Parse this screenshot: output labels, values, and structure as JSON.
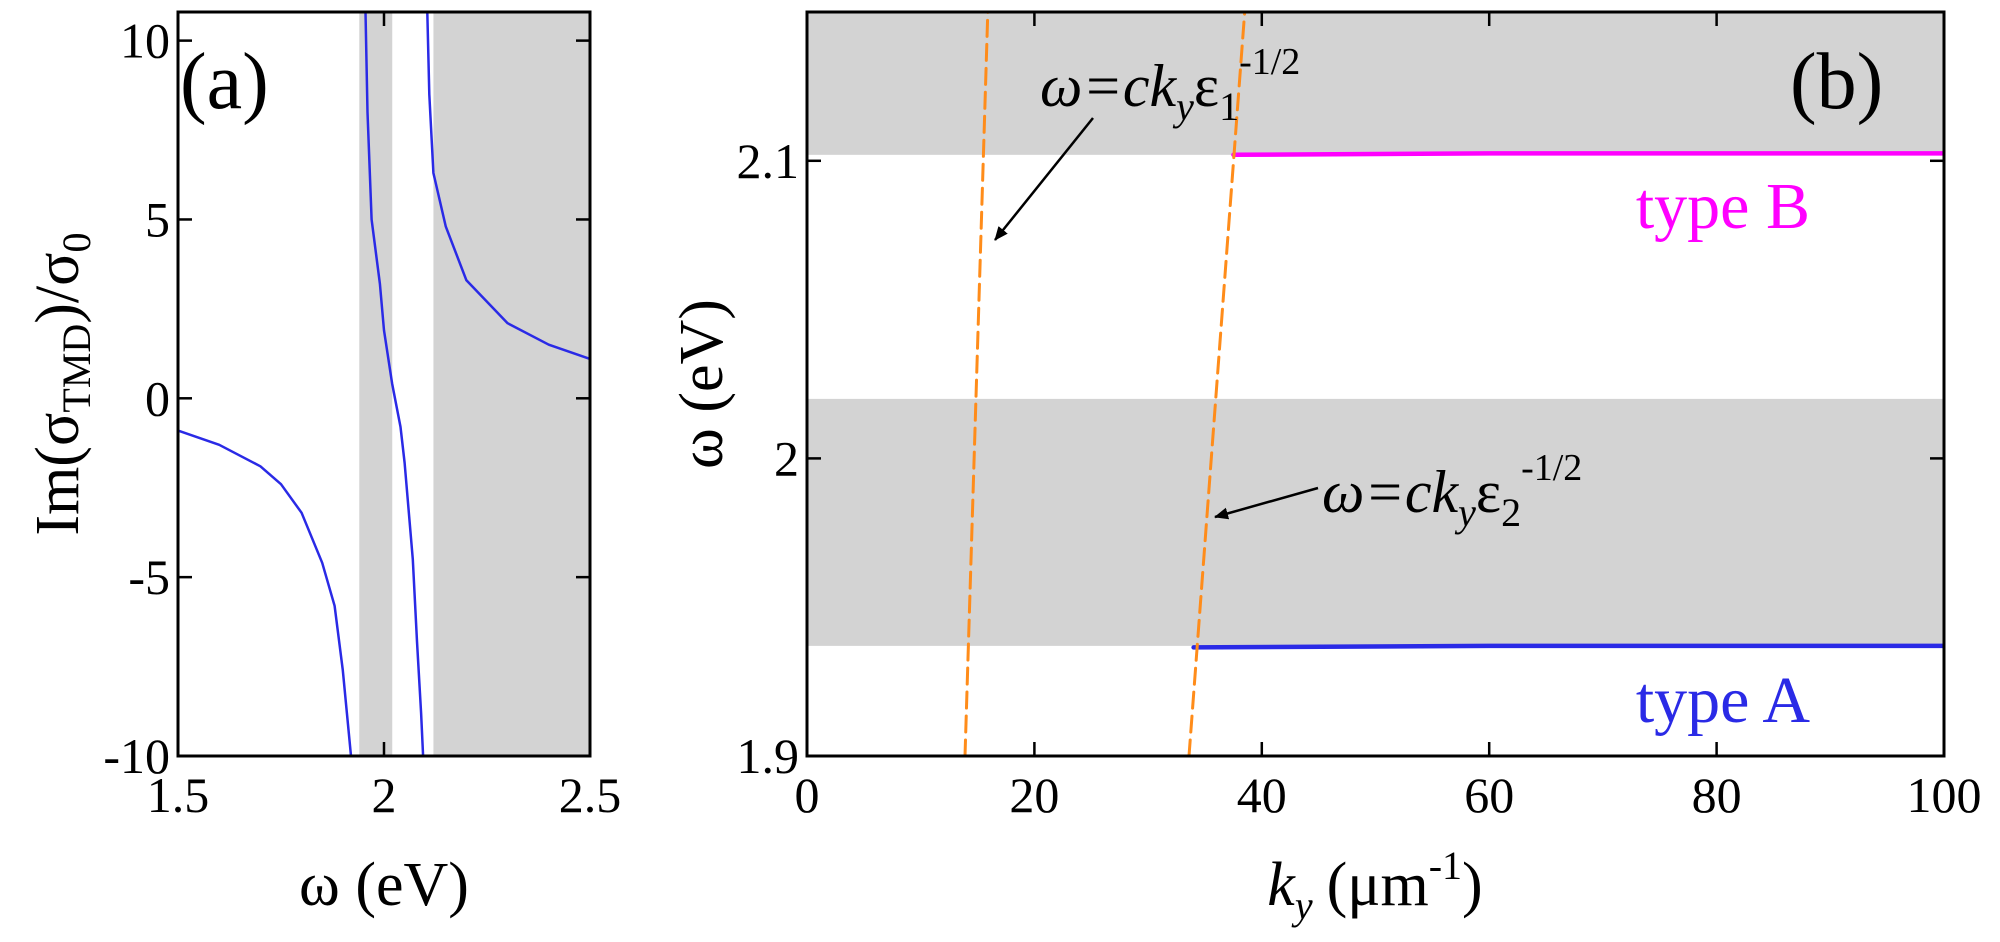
{
  "colors": {
    "band": "#d3d3d3",
    "axis": "#000000",
    "blue": "#2a2ae6",
    "magenta": "#ff00ff",
    "orange": "#ff8c1a"
  },
  "chart_data": [
    {
      "panel": "(a)",
      "type": "line",
      "xlabel": "ω (eV)",
      "ylabel_parts": {
        "main": "Im(σ",
        "sub": "TMD",
        "close": ")/σ",
        "sub2": "0"
      },
      "xlim": [
        1.5,
        2.5
      ],
      "ylim": [
        -10,
        10.8
      ],
      "xticks": [
        1.5,
        2,
        2.5
      ],
      "xtick_labels": [
        "1.5",
        "2",
        "2.5"
      ],
      "yticks": [
        -10,
        -5,
        0,
        5,
        10
      ],
      "ytick_labels": [
        "-10",
        "-5",
        "0",
        "5",
        "10"
      ],
      "shaded_bands": [
        [
          1.94,
          2.02
        ],
        [
          2.12,
          2.5
        ]
      ],
      "series": [
        {
          "color": "#2a2ae6",
          "segments": [
            {
              "x": [
                1.5,
                1.6,
                1.7,
                1.75,
                1.8,
                1.85,
                1.88,
                1.9,
                1.91,
                1.92
              ],
              "y": [
                -0.9,
                -1.3,
                -1.9,
                -2.4,
                -3.2,
                -4.6,
                -5.8,
                -7.6,
                -8.8,
                -10.0
              ]
            },
            {
              "x": [
                1.955,
                1.96,
                1.97,
                1.99,
                2.0,
                2.02,
                2.04,
                2.05,
                2.07,
                2.08,
                2.09,
                2.095
              ],
              "y": [
                10.8,
                8.0,
                5.0,
                3.2,
                1.9,
                0.4,
                -0.8,
                -1.8,
                -4.5,
                -6.8,
                -8.8,
                -10.0
              ]
            },
            {
              "x": [
                2.105,
                2.11,
                2.12,
                2.15,
                2.2,
                2.3,
                2.4,
                2.5
              ],
              "y": [
                10.8,
                8.5,
                6.3,
                4.8,
                3.3,
                2.1,
                1.5,
                1.1
              ]
            }
          ]
        }
      ]
    },
    {
      "panel": "(b)",
      "type": "line",
      "xlabel_parts": {
        "k": "k",
        "ksub": "y",
        "unit": "(μm",
        "sup": "-1",
        "close": ")"
      },
      "ylabel": "ω (eV)",
      "xlim": [
        0,
        100
      ],
      "ylim": [
        1.9,
        2.15
      ],
      "xticks": [
        0,
        20,
        40,
        60,
        80,
        100
      ],
      "xtick_labels": [
        "0",
        "20",
        "40",
        "60",
        "80",
        "100"
      ],
      "yticks": [
        1.9,
        2.0,
        2.1
      ],
      "ytick_labels": [
        "1.9",
        "2",
        "2.1"
      ],
      "shaded_bands": [
        [
          1.937,
          2.02
        ],
        [
          2.102,
          2.15
        ]
      ],
      "series": [
        {
          "name": "type B",
          "color": "#ff00ff",
          "x": [
            37.5,
            60,
            100
          ],
          "y": [
            2.102,
            2.1025,
            2.1025
          ]
        },
        {
          "name": "type A",
          "color": "#2a2ae6",
          "x": [
            34.0,
            60,
            100
          ],
          "y": [
            1.9365,
            1.937,
            1.937
          ]
        },
        {
          "name": "light line ε1",
          "color": "#ff8c1a",
          "dashed": true,
          "x": [
            13.9,
            15.9
          ],
          "y": [
            1.9,
            2.15
          ]
        },
        {
          "name": "light line ε2",
          "color": "#ff8c1a",
          "dashed": true,
          "x": [
            33.6,
            38.5
          ],
          "y": [
            1.9,
            2.15
          ]
        }
      ],
      "annotations": [
        {
          "id": "ann1",
          "parts": {
            "lhs": "ω=c",
            "k": "k",
            "ksub": "y",
            "eps": "ε",
            "epssub": "1",
            "sup": "-1/2"
          }
        },
        {
          "id": "ann2",
          "parts": {
            "lhs": "ω=c",
            "k": "k",
            "ksub": "y",
            "eps": "ε",
            "epssub": "2",
            "sup": "-1/2"
          }
        }
      ]
    }
  ]
}
